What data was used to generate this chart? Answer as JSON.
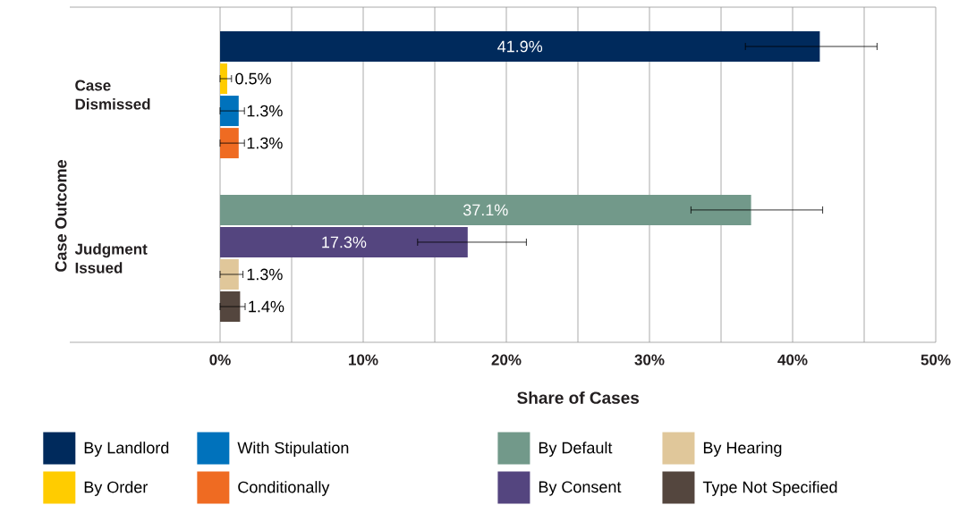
{
  "chart_data": {
    "type": "bar",
    "orientation": "horizontal",
    "xlabel": "Share of Cases",
    "ylabel": "Case Outcome",
    "categories": [
      "Case Dismissed",
      "Judgment Issued"
    ],
    "series": [
      {
        "name": "By Landlord",
        "color": "#002a5c",
        "values": [
          41.9,
          null
        ],
        "errors": [
          [
            36.7,
            45.9
          ],
          null
        ],
        "value_labels": [
          "41.9%",
          null
        ]
      },
      {
        "name": "By Order",
        "color": "#ffcc00",
        "values": [
          0.5,
          null
        ],
        "errors": [
          [
            0,
            0.8
          ],
          null
        ],
        "value_labels": [
          "0.5%",
          null
        ]
      },
      {
        "name": "With Stipulation",
        "color": "#0072bc",
        "values": [
          1.3,
          null
        ],
        "errors": [
          [
            0,
            1.7
          ],
          null
        ],
        "value_labels": [
          "1.3%",
          null
        ]
      },
      {
        "name": "Conditionally",
        "color": "#ef6b22",
        "values": [
          1.3,
          null
        ],
        "errors": [
          [
            0,
            1.7
          ],
          null
        ],
        "value_labels": [
          "1.3%",
          null
        ]
      },
      {
        "name": "By Default",
        "color": "#72998a",
        "values": [
          null,
          37.1
        ],
        "errors": [
          null,
          [
            32.9,
            42.1
          ]
        ],
        "value_labels": [
          null,
          "37.1%"
        ]
      },
      {
        "name": "By Consent",
        "color": "#54457f",
        "values": [
          null,
          17.3
        ],
        "errors": [
          null,
          [
            13.8,
            21.4
          ]
        ],
        "value_labels": [
          null,
          "17.3%"
        ]
      },
      {
        "name": "By Hearing",
        "color": "#e0c79a",
        "values": [
          null,
          1.3
        ],
        "errors": [
          null,
          [
            0,
            1.6
          ]
        ],
        "value_labels": [
          null,
          "1.3%"
        ]
      },
      {
        "name": "Type Not Specified",
        "color": "#54463e",
        "values": [
          null,
          1.4
        ],
        "errors": [
          null,
          [
            0,
            1.75
          ]
        ],
        "value_labels": [
          null,
          "1.4%"
        ]
      }
    ],
    "xlim": [
      -10.5,
      50
    ],
    "xticks": [
      {
        "value": 0,
        "label": "0%"
      },
      {
        "value": 5,
        "label": null
      },
      {
        "value": 10,
        "label": "10%"
      },
      {
        "value": 15,
        "label": null
      },
      {
        "value": 20,
        "label": "20%"
      },
      {
        "value": 25,
        "label": null
      },
      {
        "value": 30,
        "label": "30%"
      },
      {
        "value": 35,
        "label": null
      },
      {
        "value": 40,
        "label": "40%"
      },
      {
        "value": 45,
        "label": null
      },
      {
        "value": 50,
        "label": "50%"
      }
    ],
    "grid": "x",
    "legend": "bottom"
  }
}
